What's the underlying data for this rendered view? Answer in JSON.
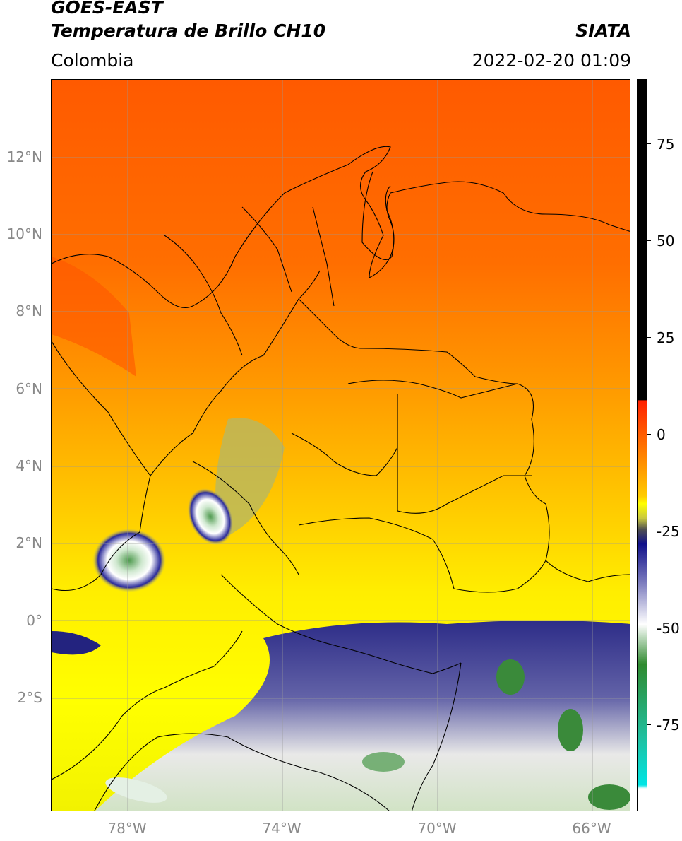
{
  "header": {
    "satellite": "GOES-EAST",
    "product": "Temperatura de Brillo CH10",
    "region": "Colombia",
    "agency": "SIATA",
    "datetime": "2022-02-20 01:09"
  },
  "map": {
    "lat_labels": [
      "12°N",
      "10°N",
      "8°N",
      "6°N",
      "4°N",
      "2°N",
      "0°",
      "2°S"
    ],
    "lon_labels": [
      "78°W",
      "74°W",
      "70°W",
      "66°W"
    ],
    "extent": {
      "lon_min": -80,
      "lon_max": -65,
      "lat_min": -5,
      "lat_max": 14
    },
    "grid": true
  },
  "colorbar": {
    "labels": [
      "75",
      "50",
      "25",
      "0",
      "-25",
      "-50",
      "-75"
    ],
    "colors": {
      "cold_fill": "#000000",
      "warm": "#ff6a00",
      "mid": "#ffff00",
      "cloud_dark": "#1a1a8c",
      "cloud_white": "#ffffff",
      "cloud_green": "#3a8a3a",
      "cyan": "#00e5e5"
    }
  }
}
